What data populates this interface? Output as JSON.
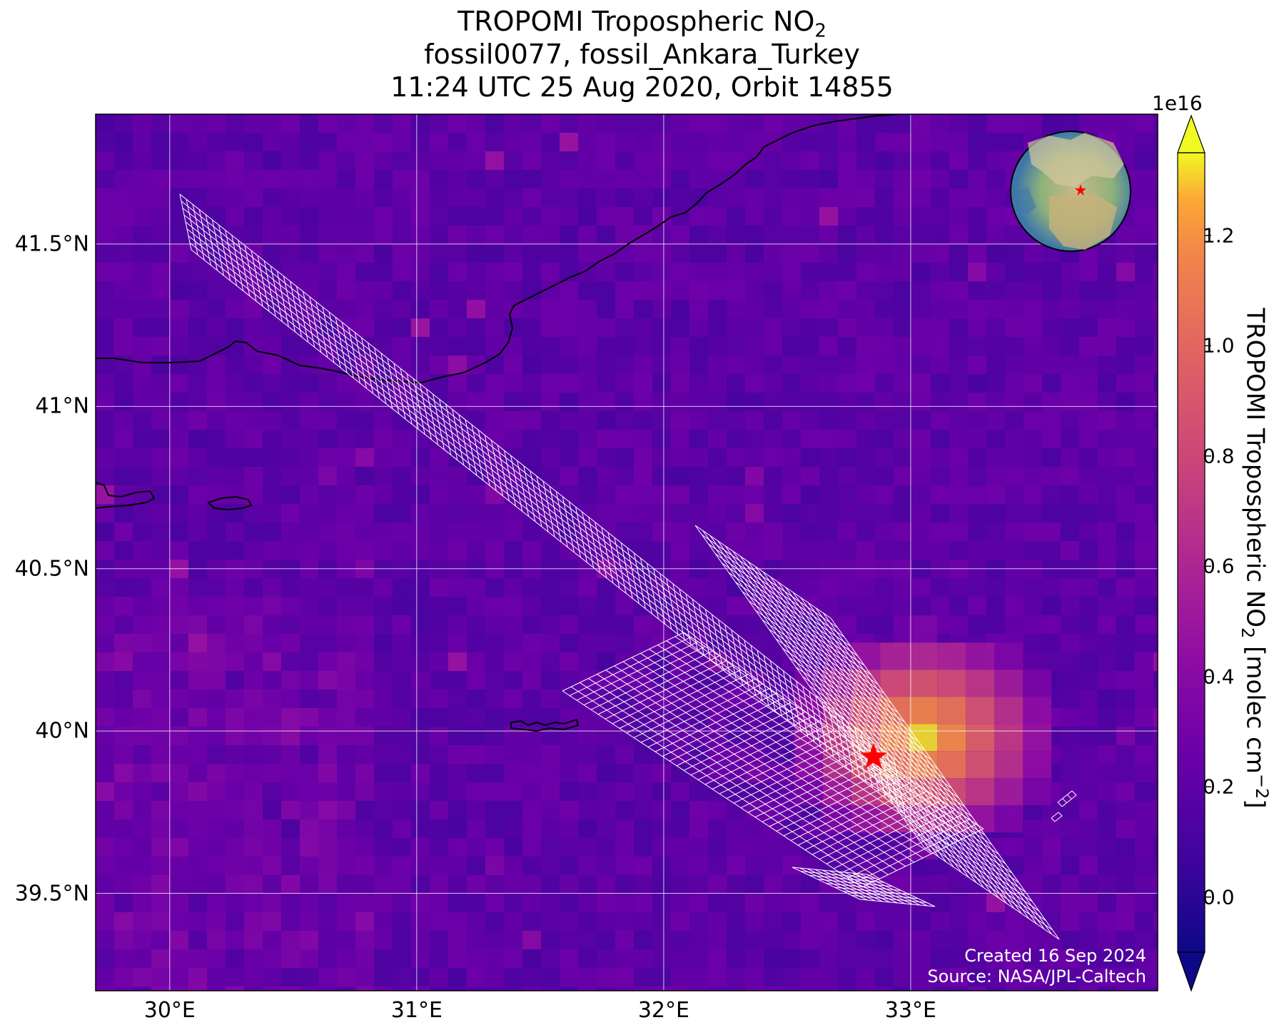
{
  "title": {
    "line1_prefix": "TROPOMI Tropospheric NO",
    "line1_sub": "2",
    "line2": "fossil0077, fossil_Ankara_Turkey",
    "line3": "11:24 UTC 25 Aug 2020, Orbit 14855"
  },
  "map": {
    "extent": {
      "lon": [
        29.7,
        34.0
      ],
      "lat": [
        39.2,
        41.9
      ]
    },
    "lat_ticks": [
      {
        "value": 41.5,
        "label": "41.5°N"
      },
      {
        "value": 41.0,
        "label": "41°N"
      },
      {
        "value": 40.5,
        "label": "40.5°N"
      },
      {
        "value": 40.0,
        "label": "40°N"
      },
      {
        "value": 39.5,
        "label": "39.5°N"
      }
    ],
    "lon_ticks": [
      {
        "value": 30,
        "label": "30°E"
      },
      {
        "value": 31,
        "label": "31°E"
      },
      {
        "value": 32,
        "label": "32°E"
      },
      {
        "value": 33,
        "label": "33°E"
      }
    ],
    "grid": true,
    "target_marker": {
      "lon": 32.85,
      "lat": 39.92,
      "color": "#ff0000",
      "shape": "star"
    },
    "background_colors": {
      "low": "#0d0887",
      "mid": "#7e03a8",
      "high": "#f0f921"
    }
  },
  "colorbar": {
    "exponent": "1e16",
    "label_prefix": "TROPOMI Tropospheric NO",
    "label_sub": "2",
    "label_units": " [molec cm",
    "label_sup": "−2",
    "label_close": "]",
    "range": [
      -0.1,
      1.35
    ],
    "ticks": [
      {
        "value": 0.0,
        "label": "0.0"
      },
      {
        "value": 0.2,
        "label": "0.2"
      },
      {
        "value": 0.4,
        "label": "0.4"
      },
      {
        "value": 0.6,
        "label": "0.6"
      },
      {
        "value": 0.8,
        "label": "0.8"
      },
      {
        "value": 1.0,
        "label": "1.0"
      },
      {
        "value": 1.2,
        "label": "1.2"
      }
    ],
    "colormap": "plasma"
  },
  "credits": {
    "created": "Created 16 Sep 2024",
    "source": "Source: NASA/JPL-Caltech"
  }
}
